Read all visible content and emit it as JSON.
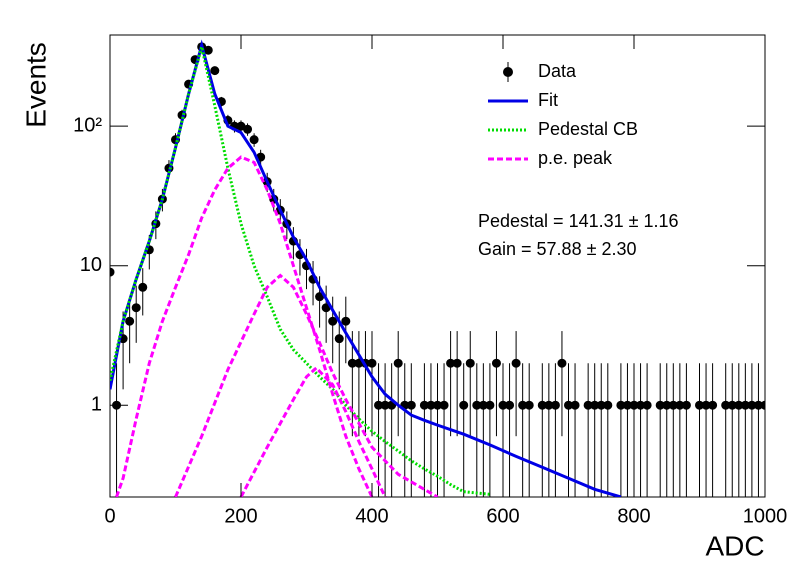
{
  "chart_data": {
    "type": "scatter",
    "x_label": "ADC",
    "y_label": "Events",
    "xlim": [
      0,
      1000
    ],
    "ylim": [
      0.22,
      450
    ],
    "log_y": true,
    "legend": "upper right",
    "xticks": [
      0,
      200,
      400,
      600,
      800,
      1000
    ],
    "yticks": [
      1,
      10,
      {
        "value": 100,
        "label": "10²"
      }
    ],
    "annotations": [
      "Pedestal = 141.31 ± 1.16",
      "Gain = 57.88 ± 2.30"
    ],
    "series": [
      {
        "name": "Data",
        "kind": "points",
        "color": "#000000",
        "x": [
          0,
          10,
          20,
          30,
          40,
          50,
          60,
          70,
          80,
          90,
          100,
          110,
          120,
          130,
          140,
          150,
          160,
          170,
          180,
          190,
          200,
          210,
          220,
          230,
          240,
          250,
          260,
          270,
          280,
          290,
          300,
          310,
          320,
          330,
          340,
          350,
          360,
          370,
          380,
          390,
          400,
          410,
          420,
          430,
          440,
          450,
          460,
          470,
          480,
          490,
          500,
          510,
          520,
          530,
          540,
          550,
          560,
          570,
          580,
          590,
          600,
          610,
          620,
          630,
          640,
          650,
          660,
          670,
          680,
          690,
          700,
          710,
          720,
          730,
          740,
          750,
          760,
          770,
          780,
          790,
          800,
          810,
          820,
          830,
          840,
          850,
          860,
          870,
          880,
          890,
          900,
          910,
          920,
          930,
          940,
          950,
          960,
          970,
          980,
          990,
          1000
        ],
        "values": [
          9,
          1,
          3,
          4,
          5,
          7,
          13,
          20,
          30,
          50,
          80,
          120,
          200,
          300,
          370,
          350,
          250,
          150,
          110,
          100,
          100,
          95,
          80,
          60,
          40,
          30,
          25,
          20,
          15,
          12,
          10,
          8,
          6,
          5,
          4,
          3,
          4,
          2,
          2,
          2,
          2,
          1,
          1,
          1,
          2,
          1,
          1,
          null,
          1,
          1,
          1,
          1,
          2,
          2,
          1,
          2,
          1,
          1,
          1,
          2,
          1,
          1,
          2,
          1,
          1,
          null,
          1,
          1,
          1,
          2,
          1,
          1,
          null,
          1,
          1,
          1,
          1,
          null,
          1,
          1,
          1,
          1,
          1,
          null,
          1,
          1,
          1,
          1,
          1,
          null,
          1,
          1,
          1,
          null,
          1,
          1,
          1,
          1,
          1,
          1,
          1
        ],
        "errors": [
          3,
          1,
          1.7,
          2,
          2.2,
          2.6,
          3.6,
          4.5,
          5.5,
          7.1,
          8.9,
          11,
          14,
          17,
          19,
          19,
          16,
          12,
          10.5,
          10,
          10,
          9.7,
          8.9,
          7.7,
          6.3,
          5.5,
          5,
          4.5,
          3.9,
          3.5,
          3.2,
          2.8,
          2.4,
          2.2,
          2,
          1.7,
          2,
          1.4,
          1.4,
          1.4,
          1.4,
          1,
          1,
          1,
          1.4,
          1,
          1,
          null,
          1,
          1,
          1,
          1,
          1.4,
          1.4,
          1,
          1.4,
          1,
          1,
          1,
          1.4,
          1,
          1,
          1.4,
          1,
          1,
          null,
          1,
          1,
          1,
          1.4,
          1,
          1,
          null,
          1,
          1,
          1,
          1,
          null,
          1,
          1,
          1,
          1,
          1,
          null,
          1,
          1,
          1,
          1,
          1,
          null,
          1,
          1,
          1,
          null,
          1,
          1,
          1,
          1,
          1,
          1,
          1
        ]
      },
      {
        "name": "Fit",
        "kind": "line",
        "style": "solid",
        "color": "#0000e6",
        "x": [
          0,
          20,
          40,
          60,
          80,
          100,
          120,
          140,
          160,
          180,
          200,
          220,
          240,
          260,
          280,
          300,
          320,
          340,
          360,
          380,
          400,
          420,
          440,
          460,
          480,
          500,
          540,
          580,
          620,
          660,
          700,
          740,
          780
        ],
        "values": [
          1.3,
          4,
          8,
          15,
          30,
          70,
          170,
          380,
          170,
          100,
          90,
          65,
          40,
          25,
          16,
          11,
          7,
          4.8,
          3.3,
          2.3,
          1.6,
          1.2,
          1.0,
          0.85,
          0.78,
          0.72,
          0.62,
          0.52,
          0.43,
          0.36,
          0.3,
          0.25,
          0.22
        ]
      },
      {
        "name": "Pedestal CB",
        "kind": "line",
        "style": "dotted",
        "color": "#00dd00",
        "x": [
          0,
          20,
          40,
          60,
          80,
          100,
          120,
          140,
          160,
          180,
          200,
          220,
          240,
          260,
          280,
          300,
          320,
          340,
          360,
          380,
          400,
          420,
          440,
          460,
          480,
          500,
          520,
          540,
          580
        ],
        "values": [
          1.5,
          4,
          8,
          15,
          30,
          70,
          170,
          370,
          140,
          50,
          20,
          10,
          6,
          3.5,
          2.5,
          2,
          1.6,
          1.3,
          1,
          0.8,
          0.65,
          0.55,
          0.47,
          0.4,
          0.35,
          0.31,
          0.27,
          0.24,
          0.23
        ]
      },
      {
        "name": "p.e. peak",
        "kind": "line",
        "style": "dashed",
        "color": "#ff00ff",
        "x": [
          10,
          20,
          40,
          60,
          80,
          100,
          120,
          140,
          160,
          180,
          200,
          220,
          240,
          260,
          280,
          300,
          320,
          340,
          360,
          380,
          400
        ],
        "values": [
          0.22,
          0.3,
          0.8,
          2,
          4,
          7,
          12,
          22,
          35,
          50,
          60,
          55,
          35,
          20,
          10,
          5,
          2.5,
          1.2,
          0.6,
          0.35,
          0.22
        ]
      },
      {
        "kind": "line",
        "style": "dashed",
        "color": "#ff00ff",
        "x": [
          100,
          140,
          180,
          220,
          240,
          260,
          280,
          300,
          320,
          340,
          360,
          400,
          440,
          500
        ],
        "values": [
          0.22,
          0.6,
          1.8,
          4.5,
          7,
          8.5,
          7,
          4.5,
          2.8,
          1.7,
          1.1,
          0.5,
          0.32,
          0.22
        ]
      },
      {
        "kind": "line",
        "style": "dashed",
        "color": "#ff00ff",
        "x": [
          200,
          240,
          280,
          300,
          315,
          340,
          360,
          380,
          400,
          420
        ],
        "values": [
          0.22,
          0.5,
          1.1,
          1.6,
          1.85,
          1.4,
          0.9,
          0.55,
          0.35,
          0.22
        ]
      }
    ]
  }
}
